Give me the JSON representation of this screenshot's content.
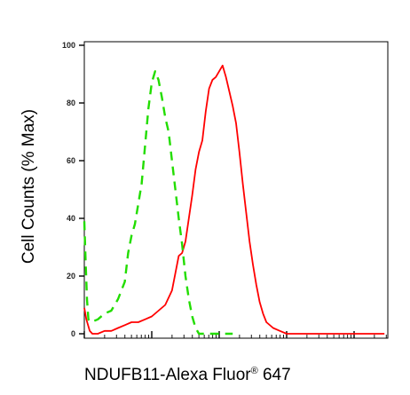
{
  "chart_data": {
    "type": "line",
    "title": "",
    "xlabel": "NDUFB11-Alexa Fluor",
    "xlabel_super": "®",
    "xlabel_suffix": " 647",
    "ylabel": "Cell Counts (% Max)",
    "ylim": [
      0,
      100
    ],
    "yticks": [
      0,
      20,
      40,
      60,
      80,
      100
    ],
    "xscale": "log",
    "xlim_decades": [
      0,
      4.5
    ],
    "grid": false,
    "legend": "none",
    "series": [
      {
        "style": "solid",
        "color": "#ff0000",
        "points": [
          [
            0.0,
            9
          ],
          [
            0.03,
            5
          ],
          [
            0.08,
            1
          ],
          [
            0.12,
            0
          ],
          [
            0.2,
            0
          ],
          [
            0.3,
            1
          ],
          [
            0.4,
            1
          ],
          [
            0.5,
            2
          ],
          [
            0.6,
            3
          ],
          [
            0.7,
            4
          ],
          [
            0.8,
            4
          ],
          [
            0.9,
            5
          ],
          [
            1.0,
            6
          ],
          [
            1.1,
            8
          ],
          [
            1.2,
            10
          ],
          [
            1.3,
            15
          ],
          [
            1.35,
            21
          ],
          [
            1.4,
            27
          ],
          [
            1.45,
            28
          ],
          [
            1.5,
            32
          ],
          [
            1.55,
            40
          ],
          [
            1.6,
            48
          ],
          [
            1.65,
            57
          ],
          [
            1.7,
            63
          ],
          [
            1.75,
            67
          ],
          [
            1.8,
            77
          ],
          [
            1.85,
            85
          ],
          [
            1.9,
            88
          ],
          [
            1.95,
            89
          ],
          [
            2.0,
            91
          ],
          [
            2.05,
            93
          ],
          [
            2.1,
            89
          ],
          [
            2.15,
            84
          ],
          [
            2.2,
            79
          ],
          [
            2.25,
            73
          ],
          [
            2.3,
            63
          ],
          [
            2.35,
            52
          ],
          [
            2.4,
            42
          ],
          [
            2.45,
            32
          ],
          [
            2.5,
            24
          ],
          [
            2.55,
            17
          ],
          [
            2.6,
            11
          ],
          [
            2.65,
            7
          ],
          [
            2.7,
            4
          ],
          [
            2.8,
            2
          ],
          [
            2.9,
            1
          ],
          [
            3.0,
            0
          ],
          [
            3.5,
            0
          ],
          [
            4.0,
            0
          ],
          [
            4.45,
            0
          ]
        ]
      },
      {
        "style": "dashed",
        "color": "#22dd00",
        "points": [
          [
            0.0,
            39
          ],
          [
            0.02,
            25
          ],
          [
            0.04,
            12
          ],
          [
            0.06,
            5
          ],
          [
            0.1,
            4
          ],
          [
            0.2,
            5
          ],
          [
            0.3,
            7
          ],
          [
            0.4,
            8
          ],
          [
            0.5,
            12
          ],
          [
            0.6,
            18
          ],
          [
            0.65,
            28
          ],
          [
            0.7,
            34
          ],
          [
            0.75,
            38
          ],
          [
            0.8,
            45
          ],
          [
            0.85,
            52
          ],
          [
            0.9,
            65
          ],
          [
            0.95,
            78
          ],
          [
            1.0,
            87
          ],
          [
            1.05,
            91
          ],
          [
            1.1,
            88
          ],
          [
            1.15,
            82
          ],
          [
            1.2,
            75
          ],
          [
            1.25,
            70
          ],
          [
            1.3,
            60
          ],
          [
            1.35,
            50
          ],
          [
            1.4,
            40
          ],
          [
            1.45,
            31
          ],
          [
            1.5,
            20
          ],
          [
            1.55,
            12
          ],
          [
            1.6,
            6
          ],
          [
            1.65,
            2
          ],
          [
            1.7,
            0
          ],
          [
            2.0,
            0
          ],
          [
            2.2,
            0
          ]
        ]
      }
    ]
  }
}
